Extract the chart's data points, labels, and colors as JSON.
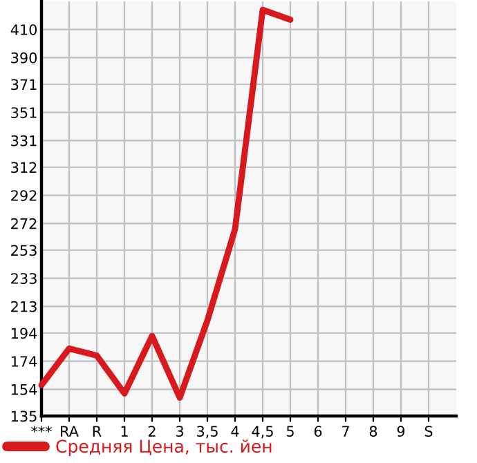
{
  "chart_data": {
    "type": "line",
    "categories": [
      "***",
      "RA",
      "R",
      "1",
      "2",
      "3",
      "3,5",
      "4",
      "4,5",
      "5",
      "6",
      "7",
      "8",
      "9",
      "S"
    ],
    "series": [
      {
        "name": "Средняя Цена, тыс. йен",
        "color": "#d71a1e",
        "values": [
          157,
          183,
          178,
          151,
          192,
          148,
          203,
          268,
          424,
          417,
          null,
          null,
          null,
          null,
          null
        ]
      }
    ],
    "ylim": [
      135,
      430
    ],
    "yticks": [
      135,
      154,
      174,
      194,
      213,
      233,
      253,
      272,
      292,
      312,
      331,
      351,
      371,
      390,
      410
    ],
    "grid": true,
    "legend": "bottom",
    "marker": "none",
    "line_style": "solid"
  }
}
